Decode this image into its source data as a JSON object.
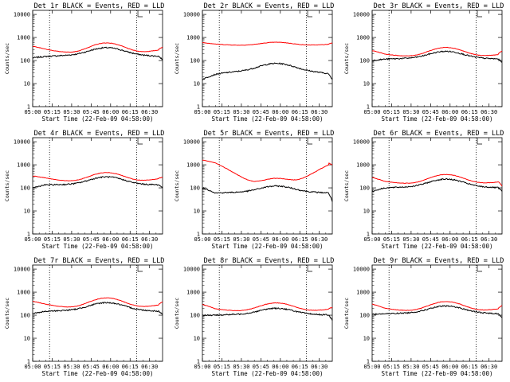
{
  "chart_data": {
    "type": "line",
    "layout": "3x3 grid",
    "shared": {
      "xlabel": "Start Time (22-Feb-09 04:58:00)",
      "ylabel": "Counts/sec",
      "x_ticks": [
        "05:00",
        "05:15",
        "05:30",
        "05:45",
        "06:00",
        "06:15",
        "06:30"
      ],
      "x_ticks_minutes": [
        0,
        15,
        30,
        45,
        60,
        75,
        90
      ],
      "xlim_minutes": [
        0,
        100
      ],
      "y_ticks": [
        "1",
        "10",
        "100",
        "1000",
        "10000"
      ],
      "y_ticks_values": [
        1,
        10,
        100,
        1000,
        10000
      ],
      "ylim": [
        1,
        15000
      ],
      "y_scale": "log",
      "vertical_dotted_lines_minutes": [
        13,
        80
      ],
      "marker_minutes": 81,
      "grid": false,
      "colors": {
        "events": "#000000",
        "lld": "#ff0000"
      },
      "series_names": [
        "BLACK = Events",
        "RED = LLD"
      ]
    },
    "panels": [
      {
        "title": "Det 1r BLACK = Events, RED = LLD",
        "events": {
          "edge": 150,
          "base": 170,
          "peak": 360,
          "start": 130,
          "end": 110
        },
        "lld": {
          "edge": 310,
          "base": 190,
          "peak": 580,
          "start": 420,
          "end": 380
        }
      },
      {
        "title": "Det 2r BLACK = Events, RED = LLD",
        "events": {
          "edge": 25,
          "base": 35,
          "peak": 75,
          "start": 15,
          "end": 15
        },
        "lld": {
          "edge": 520,
          "base": 440,
          "peak": 620,
          "start": 600,
          "end": 580
        }
      },
      {
        "title": "Det 3r BLACK = Events, RED = LLD",
        "events": {
          "edge": 115,
          "base": 125,
          "peak": 250,
          "start": 100,
          "end": 85
        },
        "lld": {
          "edge": 190,
          "base": 140,
          "peak": 370,
          "start": 270,
          "end": 260
        }
      },
      {
        "title": "Det 4r BLACK = Events, RED = LLD",
        "events": {
          "edge": 135,
          "base": 140,
          "peak": 300,
          "start": 100,
          "end": 100
        },
        "lld": {
          "edge": 270,
          "base": 170,
          "peak": 460,
          "start": 330,
          "end": 280
        }
      },
      {
        "title": "Det 5r BLACK = Events, RED = LLD",
        "events": {
          "edge": 60,
          "base": 65,
          "peak": 120,
          "start": 100,
          "end": 25
        },
        "lld": {
          "edge": 1200,
          "base": 100,
          "peak": 260,
          "start": 1600,
          "end": 1000
        }
      },
      {
        "title": "Det 6r BLACK = Events, RED = LLD",
        "events": {
          "edge": 100,
          "base": 110,
          "peak": 240,
          "start": 70,
          "end": 70
        },
        "lld": {
          "edge": 190,
          "base": 140,
          "peak": 380,
          "start": 280,
          "end": 120
        }
      },
      {
        "title": "Det 7r BLACK = Events, RED = LLD",
        "events": {
          "edge": 145,
          "base": 165,
          "peak": 350,
          "start": 120,
          "end": 110
        },
        "lld": {
          "edge": 300,
          "base": 190,
          "peak": 560,
          "start": 400,
          "end": 380
        }
      },
      {
        "title": "Det 8r BLACK = Events, RED = LLD",
        "events": {
          "edge": 100,
          "base": 110,
          "peak": 200,
          "start": 100,
          "end": 60
        },
        "lld": {
          "edge": 190,
          "base": 140,
          "peak": 340,
          "start": 290,
          "end": 220
        }
      },
      {
        "title": "Det 9r BLACK = Events, RED = LLD",
        "events": {
          "edge": 115,
          "base": 125,
          "peak": 250,
          "start": 110,
          "end": 80
        },
        "lld": {
          "edge": 200,
          "base": 140,
          "peak": 390,
          "start": 300,
          "end": 260
        }
      }
    ]
  }
}
